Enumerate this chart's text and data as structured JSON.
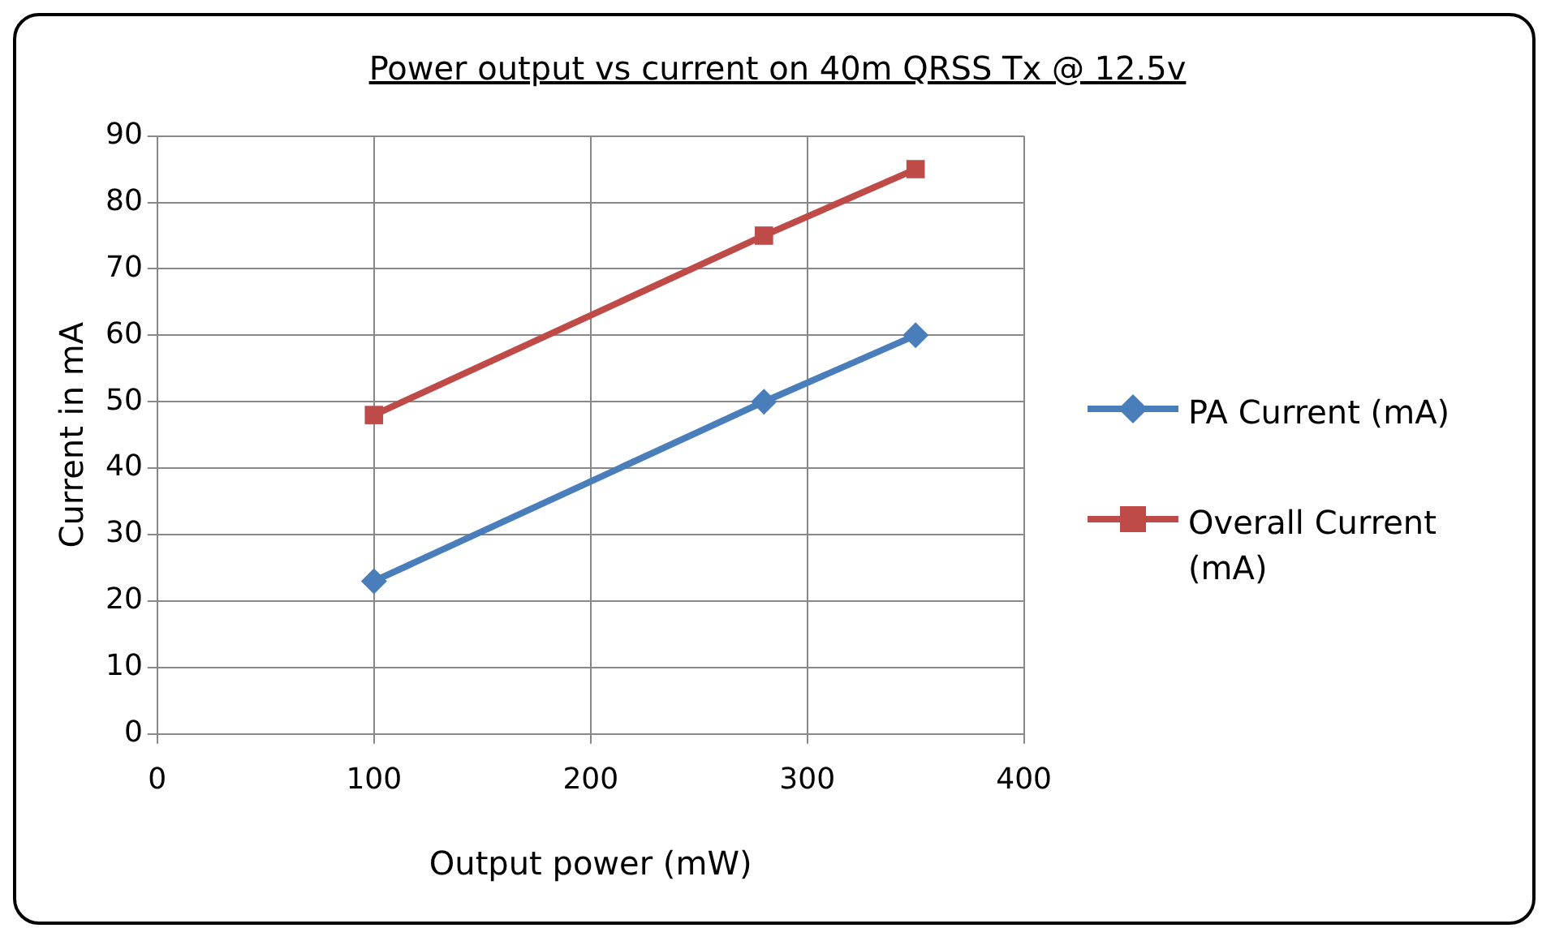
{
  "chart_data": {
    "type": "line",
    "title": "Power output vs current on 40m QRSS Tx @ 12.5v",
    "xlabel": "Output power (mW)",
    "ylabel": "Current in mA",
    "x": [
      100,
      280,
      350
    ],
    "series": [
      {
        "name": "PA Current (mA)",
        "color": "#4a7ebb",
        "values": [
          23,
          50,
          60
        ],
        "marker": "diamond"
      },
      {
        "name": "Overall Current (mA)",
        "color": "#be4b48",
        "values": [
          48,
          75,
          85
        ],
        "marker": "square"
      }
    ],
    "xlim": [
      0,
      400
    ],
    "xticks": [
      0,
      100,
      200,
      300,
      400
    ],
    "ylim": [
      0,
      90
    ],
    "yticks": [
      0,
      10,
      20,
      30,
      40,
      50,
      60,
      70,
      80,
      90
    ],
    "grid": true,
    "legend": "right",
    "line_style": "solid"
  }
}
